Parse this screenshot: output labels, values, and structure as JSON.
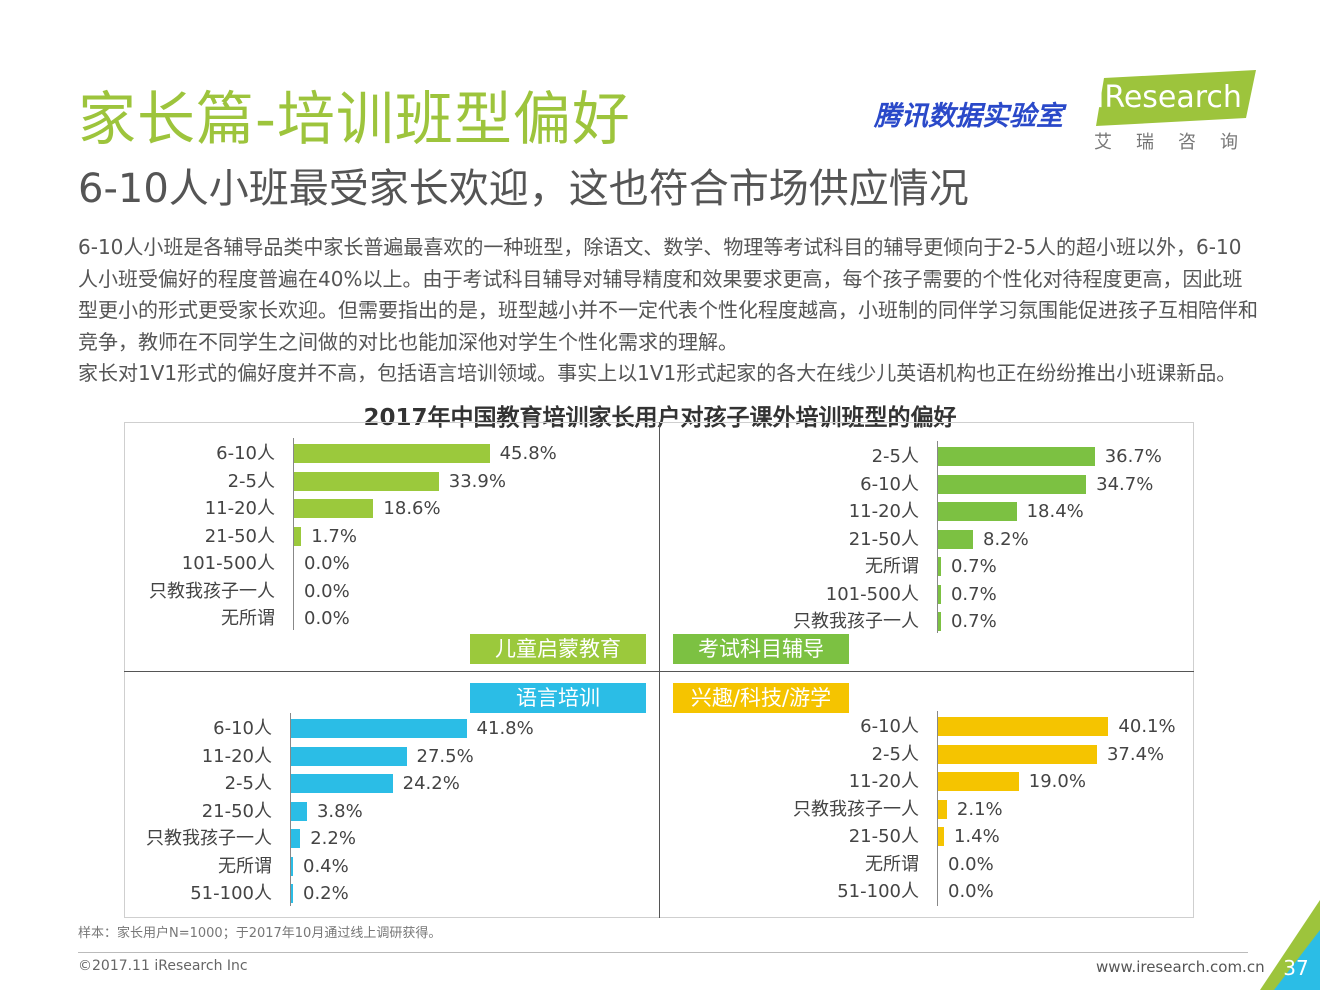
{
  "header": {
    "title": "家长篇-培训班型偏好",
    "subtitle": "6-10人小班最受家长欢迎，这也符合市场供应情况",
    "logo_tencent": "腾讯数据实验室",
    "logo_ir": "iResearch",
    "logo_ir_cn": "艾瑞咨询"
  },
  "body": {
    "para1": "6-10人小班是各辅导品类中家长普遍最喜欢的一种班型，除语文、数学、物理等考试科目的辅导更倾向于2-5人的超小班以外，6-10人小班受偏好的程度普遍在40%以上。由于考试科目辅导对辅导精度和效果要求更高，每个孩子需要的个性化对待程度更高，因此班型更小的形式更受家长欢迎。但需要指出的是，班型越小并不一定代表个性化程度越高，小班制的同伴学习氛围能促进孩子互相陪伴和竞争，教师在不同学生之间做的对比也能加深他对学生个性化需求的理解。",
    "para2": "家长对1V1形式的偏好度并不高，包括语言培训领域。事实上以1V1形式起家的各大在线少儿英语机构也正在纷纷推出小班课新品。"
  },
  "chart_title": "2017年中国教育培训家长用户对孩子课外培训班型的偏好",
  "chart_data": [
    {
      "type": "bar",
      "title": "儿童启蒙教育",
      "color": "#9bc93c",
      "categories": [
        "6-10人",
        "2-5人",
        "11-20人",
        "21-50人",
        "101-500人",
        "只教我孩子一人",
        "无所谓"
      ],
      "values": [
        45.8,
        33.9,
        18.6,
        1.7,
        0.0,
        0.0,
        0.0
      ],
      "labels": [
        "45.8%",
        "33.9%",
        "18.6%",
        "1.7%",
        "0.0%",
        "0.0%",
        "0.0%"
      ]
    },
    {
      "type": "bar",
      "title": "考试科目辅导",
      "color": "#7cc142",
      "categories": [
        "2-5人",
        "6-10人",
        "11-20人",
        "21-50人",
        "无所谓",
        "101-500人",
        "只教我孩子一人"
      ],
      "values": [
        36.7,
        34.7,
        18.4,
        8.2,
        0.7,
        0.7,
        0.7
      ],
      "labels": [
        "36.7%",
        "34.7%",
        "18.4%",
        "8.2%",
        "0.7%",
        "0.7%",
        "0.7%"
      ]
    },
    {
      "type": "bar",
      "title": "语言培训",
      "color": "#2bbde6",
      "categories": [
        "6-10人",
        "11-20人",
        "2-5人",
        "21-50人",
        "只教我孩子一人",
        "无所谓",
        "51-100人"
      ],
      "values": [
        41.8,
        27.5,
        24.2,
        3.8,
        2.2,
        0.4,
        0.2
      ],
      "labels": [
        "41.8%",
        "27.5%",
        "24.2%",
        "3.8%",
        "2.2%",
        "0.4%",
        "0.2%"
      ]
    },
    {
      "type": "bar",
      "title": "兴趣/科技/游学",
      "color": "#f5c400",
      "categories": [
        "6-10人",
        "2-5人",
        "11-20人",
        "只教我孩子一人",
        "21-50人",
        "无所谓",
        "51-100人"
      ],
      "values": [
        40.1,
        37.4,
        19.0,
        2.1,
        1.4,
        0.0,
        0.0
      ],
      "labels": [
        "40.1%",
        "37.4%",
        "19.0%",
        "2.1%",
        "1.4%",
        "0.0%",
        "0.0%"
      ]
    }
  ],
  "footer": {
    "note": "样本：家长用户N=1000；于2017年10月通过线上调研获得。",
    "copyright": "©2017.11 iResearch Inc",
    "website": "www.iresearch.com.cn",
    "page_number": "37"
  }
}
